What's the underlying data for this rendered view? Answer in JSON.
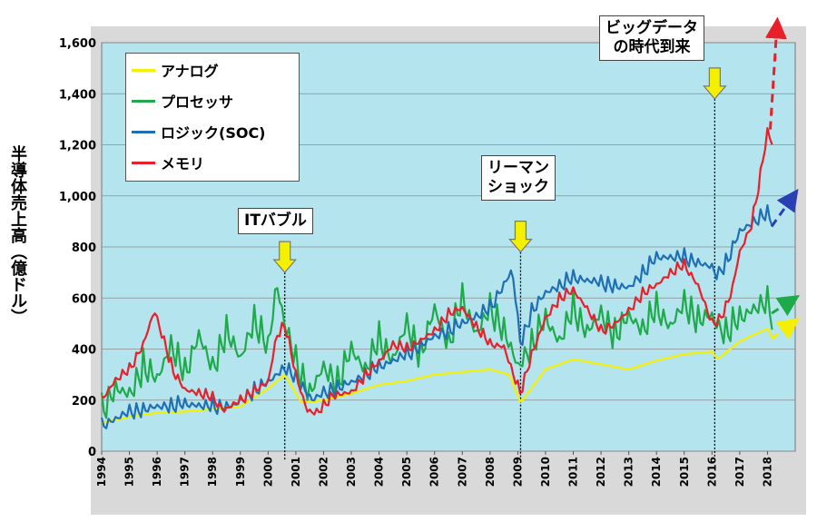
{
  "chart_data": {
    "type": "line",
    "ylabel": "半導体売上高（億ドル）",
    "xlabel": "",
    "ylim": [
      0,
      1600
    ],
    "y_ticks": [
      "0",
      "200",
      "400",
      "600",
      "800",
      "1,000",
      "1,200",
      "1,400",
      "1,600"
    ],
    "x_ticks": [
      "1994",
      "1995",
      "1996",
      "1997",
      "1998",
      "1999",
      "2000",
      "2001",
      "2002",
      "2003",
      "2004",
      "2005",
      "2006",
      "2007",
      "2008",
      "2009",
      "2010",
      "2011",
      "2012",
      "2013",
      "2014",
      "2015",
      "2016",
      "2017",
      "2018"
    ],
    "xlim": [
      1994,
      2019
    ],
    "grid": true,
    "legend_position": "top-left",
    "series": [
      {
        "name": "アナログ",
        "color": "#f5f000",
        "x": [
          1994,
          1995,
          1996,
          1997,
          1998,
          1999,
          2000,
          2000.6,
          2001.2,
          2002,
          2003,
          2004,
          2005,
          2006,
          2007,
          2008,
          2008.7,
          2009.1,
          2010,
          2011,
          2012,
          2013,
          2014,
          2015,
          2016,
          2016.2,
          2017,
          2018,
          2018.2
        ],
        "y": [
          110,
          135,
          150,
          155,
          165,
          175,
          245,
          300,
          190,
          200,
          225,
          260,
          275,
          300,
          310,
          320,
          300,
          190,
          320,
          360,
          340,
          320,
          355,
          380,
          390,
          360,
          430,
          480,
          440
        ]
      },
      {
        "name": "プロセッサ",
        "color": "#1faa4a",
        "x": [
          1994,
          1994.5,
          1995,
          1995.5,
          1996,
          1996.5,
          1997,
          1997.5,
          1998,
          1998.5,
          1999,
          1999.5,
          2000,
          2000.3,
          2000.6,
          2001,
          2001.5,
          2002,
          2002.5,
          2003,
          2003.5,
          2004,
          2004.5,
          2005,
          2005.5,
          2006,
          2006.5,
          2007,
          2007.5,
          2008,
          2008.5,
          2009,
          2009.5,
          2010,
          2010.5,
          2011,
          2011.5,
          2012,
          2012.5,
          2013,
          2013.5,
          2014,
          2014.5,
          2015,
          2015.5,
          2016,
          2016.3,
          2016.5,
          2017,
          2017.5,
          2018,
          2018.2
        ],
        "y": [
          160,
          250,
          220,
          340,
          280,
          420,
          300,
          460,
          320,
          480,
          360,
          520,
          400,
          660,
          500,
          350,
          230,
          330,
          270,
          400,
          320,
          440,
          360,
          500,
          380,
          560,
          420,
          600,
          460,
          560,
          480,
          330,
          420,
          520,
          430,
          560,
          470,
          540,
          460,
          530,
          480,
          560,
          490,
          580,
          520,
          530,
          480,
          470,
          520,
          560,
          580,
          530
        ],
        "amplitude": 70
      },
      {
        "name": "ロジック(SOC)",
        "color": "#1f6fb4",
        "x": [
          1994,
          1995,
          1996,
          1997,
          1998,
          1998.8,
          1999.5,
          2000,
          2000.6,
          2001.2,
          2001.6,
          2002,
          2003,
          2004,
          2005,
          2006,
          2007,
          2008,
          2008.8,
          2009.1,
          2009.5,
          2010,
          2011,
          2012,
          2013,
          2014,
          2015,
          2016,
          2016.2,
          2016.6,
          2017,
          2017.5,
          2018,
          2018.2
        ],
        "y": [
          100,
          155,
          175,
          185,
          175,
          180,
          240,
          270,
          330,
          260,
          200,
          230,
          270,
          330,
          380,
          450,
          500,
          560,
          710,
          420,
          550,
          620,
          680,
          660,
          640,
          760,
          760,
          720,
          690,
          760,
          860,
          900,
          930,
          900
        ],
        "amplitude": 35
      },
      {
        "name": "メモリ",
        "color": "#e8202a",
        "x": [
          1994,
          1994.5,
          1995,
          1995.5,
          1995.9,
          1996.2,
          1996.6,
          1997,
          1997.5,
          1998,
          1998.4,
          1999,
          1999.5,
          2000,
          2000.3,
          2000.6,
          2001,
          2001.4,
          2001.8,
          2002.3,
          2003,
          2003.5,
          2004,
          2004.5,
          2005,
          2006,
          2006.5,
          2007,
          2007.5,
          2008,
          2008.5,
          2008.9,
          2009.1,
          2009.5,
          2010,
          2010.5,
          2011,
          2011.5,
          2012,
          2012.5,
          2013,
          2013.5,
          2014,
          2014.5,
          2015,
          2015.5,
          2016,
          2016.3,
          2016.7,
          2017,
          2017.4,
          2017.7,
          2018,
          2018.2
        ],
        "y": [
          200,
          280,
          320,
          420,
          550,
          450,
          310,
          240,
          230,
          210,
          160,
          200,
          240,
          270,
          450,
          500,
          300,
          160,
          150,
          220,
          230,
          300,
          350,
          420,
          400,
          470,
          540,
          560,
          490,
          420,
          410,
          280,
          230,
          380,
          520,
          600,
          630,
          560,
          470,
          500,
          550,
          620,
          650,
          700,
          730,
          650,
          500,
          520,
          620,
          780,
          880,
          1050,
          1250,
          1200
        ],
        "amplitude": 25
      }
    ],
    "projections": [
      {
        "series": "メモリ",
        "color": "#e8202a",
        "from": [
          2018.1,
          1260
        ],
        "to": [
          2018.35,
          1680
        ]
      },
      {
        "series": "ロジック(SOC)",
        "color": "#2a3fb4",
        "from": [
          2018.15,
          880
        ],
        "to": [
          2019.0,
          1010
        ]
      },
      {
        "series": "プロセッサ",
        "color": "#1faa4a",
        "from": [
          2018.15,
          540
        ],
        "to": [
          2019.0,
          600
        ]
      },
      {
        "series": "アナログ",
        "color": "#f5f000",
        "from": [
          2018.15,
          440
        ],
        "to": [
          2019.0,
          510
        ]
      }
    ],
    "annotations": [
      {
        "id": "it-bubble",
        "lines": [
          "ITバブル"
        ],
        "x": 2000.6,
        "y_peak": 700
      },
      {
        "id": "lehman",
        "lines": [
          "リーマン",
          "ショック"
        ],
        "x": 2009.1,
        "y_peak": 780
      },
      {
        "id": "bigdata",
        "lines": [
          "ビッグデータ",
          "の時代到来"
        ],
        "x": 2016.1,
        "y_peak": 1380
      }
    ]
  }
}
